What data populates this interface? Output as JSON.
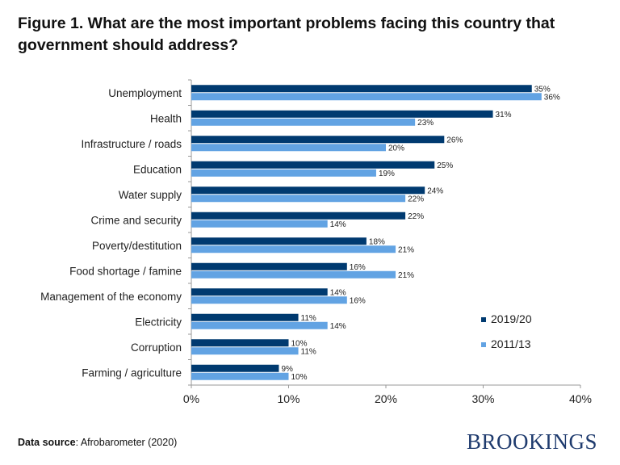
{
  "title": "Figure 1. What are the most important problems facing this country that government should address?",
  "source_label": "Data source",
  "source_text": ": Afrobarometer (2020)",
  "logo_text": "BROOKINGS",
  "chart_data": {
    "type": "bar",
    "orientation": "horizontal",
    "categories": [
      "Unemployment",
      "Health",
      "Infrastructure / roads",
      "Education",
      "Water supply",
      "Crime and security",
      "Poverty/destitution",
      "Food shortage / famine",
      "Management of the economy",
      "Electricity",
      "Corruption",
      "Farming / agriculture"
    ],
    "series": [
      {
        "name": "2019/20",
        "color": "#003a70",
        "values": [
          35,
          31,
          26,
          25,
          24,
          22,
          18,
          16,
          14,
          11,
          10,
          9
        ]
      },
      {
        "name": "2011/13",
        "color": "#62a3e3",
        "values": [
          36,
          23,
          20,
          19,
          22,
          14,
          21,
          21,
          16,
          14,
          11,
          10
        ]
      }
    ],
    "xlim": [
      0,
      40
    ],
    "xticks": [
      "0%",
      "10%",
      "20%",
      "30%",
      "40%"
    ],
    "xtick_values": [
      0,
      10,
      20,
      30,
      40
    ],
    "value_suffix": "%",
    "legend_position": "right",
    "grid": false
  }
}
